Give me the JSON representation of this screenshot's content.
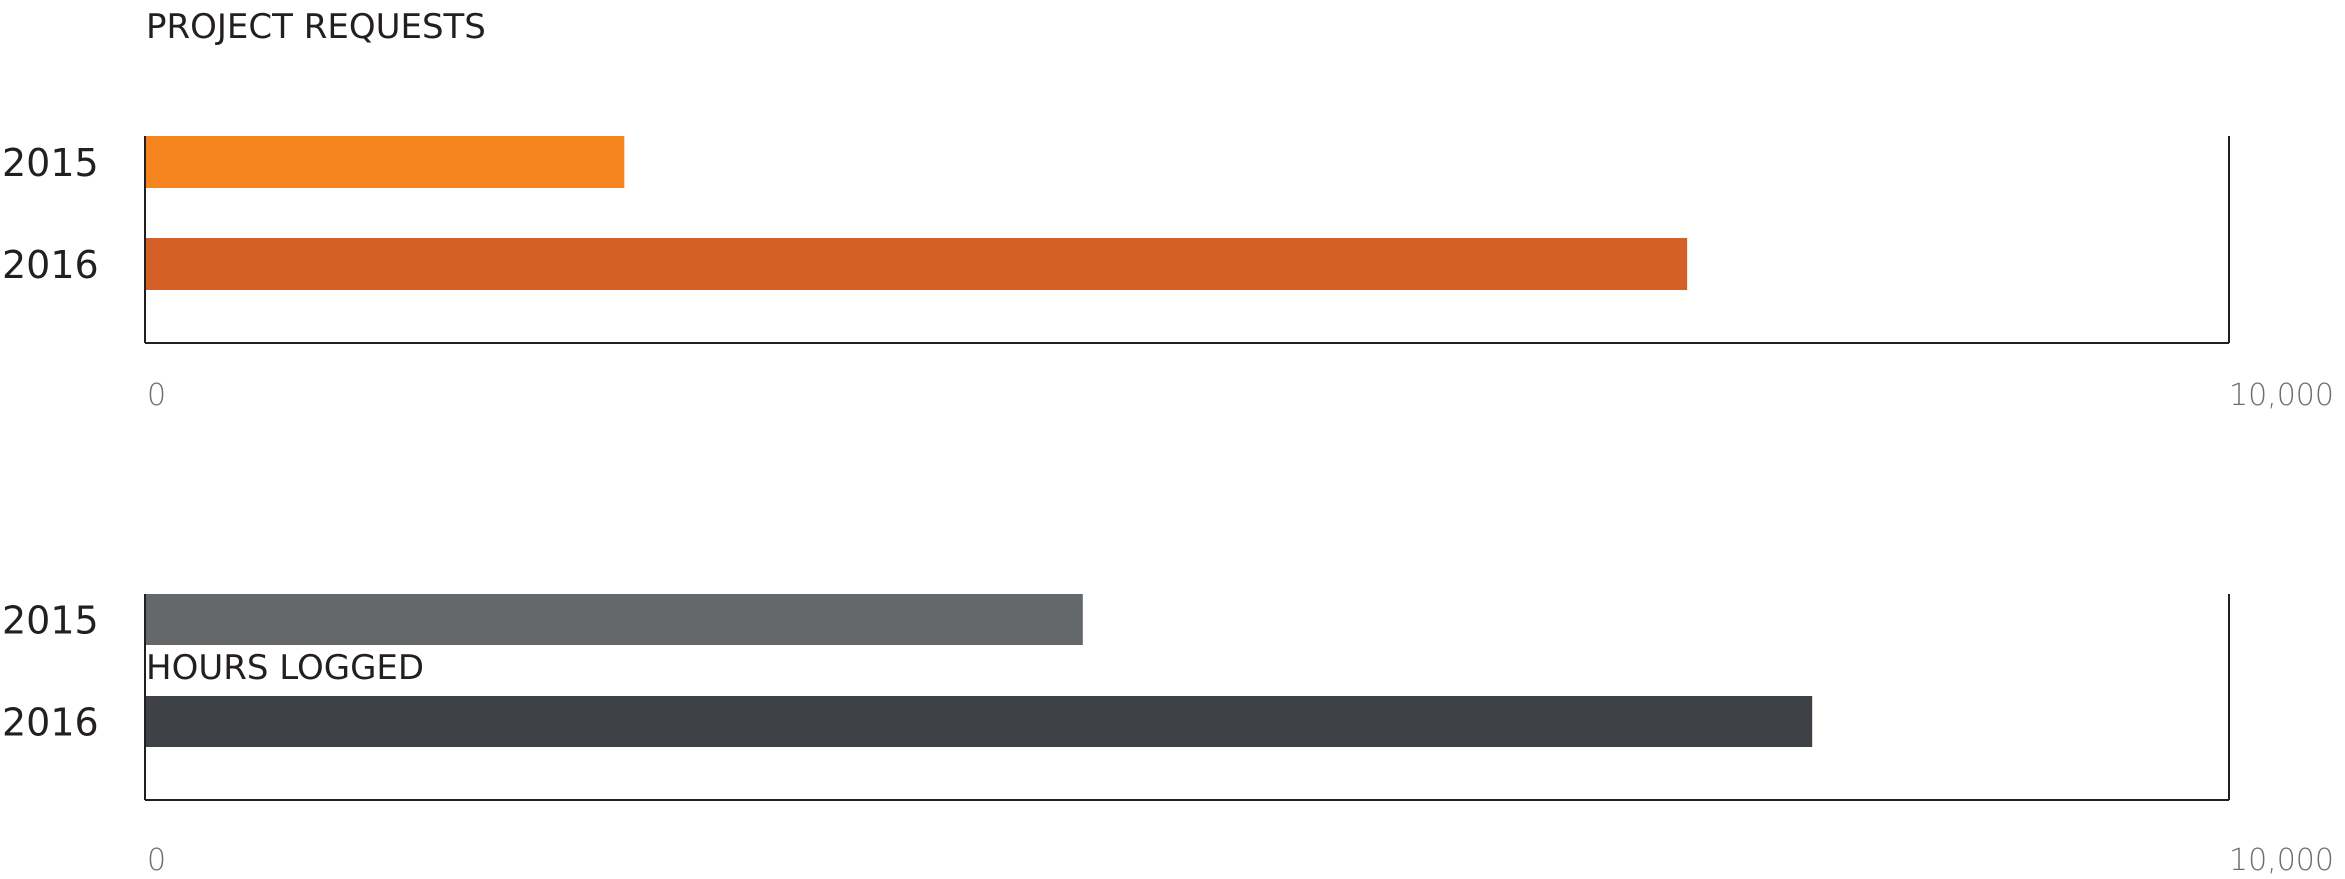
{
  "chart_data": [
    {
      "type": "bar",
      "orientation": "horizontal",
      "title": "PROJECT REQUESTS",
      "categories": [
        "2015",
        "2016"
      ],
      "values": [
        2300,
        7400
      ],
      "colors": [
        "#F6851F",
        "#D46027"
      ],
      "xlim": [
        0,
        10000
      ],
      "tick_labels": [
        "0",
        "10,000"
      ],
      "grid": false
    },
    {
      "type": "bar",
      "orientation": "horizontal",
      "title": "HOURS LOGGED",
      "categories": [
        "2015",
        "2016"
      ],
      "values": [
        4500,
        8000
      ],
      "colors": [
        "#65686B",
        "#3E4145"
      ],
      "xlim": [
        0,
        10000
      ],
      "tick_labels": [
        "0",
        "10,000"
      ],
      "grid": false
    }
  ]
}
